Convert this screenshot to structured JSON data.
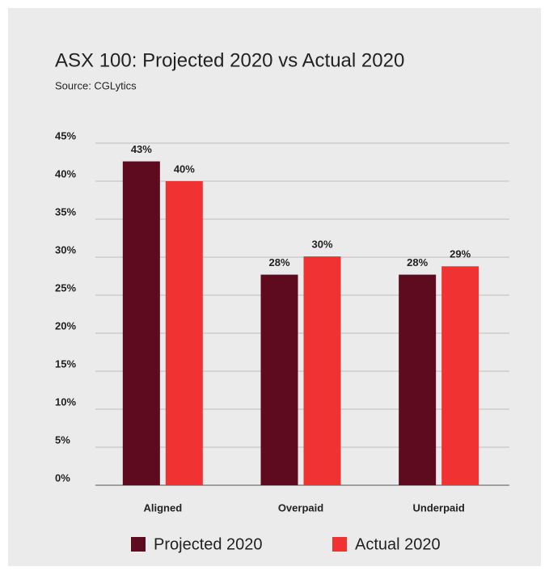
{
  "chart_data": {
    "type": "bar",
    "title": "ASX 100: Projected 2020 vs Actual 2020",
    "subtitle": "Source: CGLytics",
    "categories": [
      "Aligned",
      "Overpaid",
      "Underpaid"
    ],
    "series": [
      {
        "name": "Projected 2020",
        "color": "#5e0a1f",
        "values": [
          42.6,
          27.7,
          27.7
        ],
        "value_labels": [
          "43%",
          "28%",
          "28%"
        ]
      },
      {
        "name": "Actual 2020",
        "color": "#f03232",
        "values": [
          40,
          30.1,
          28.8
        ],
        "value_labels": [
          "40%",
          "30%",
          "29%"
        ]
      }
    ],
    "ylim": [
      0,
      45
    ],
    "yticks": [
      {
        "value": 0,
        "label": "0%"
      },
      {
        "value": 5,
        "label": "5%"
      },
      {
        "value": 10,
        "label": "10%"
      },
      {
        "value": 15,
        "label": "15%"
      },
      {
        "value": 20,
        "label": "20%"
      },
      {
        "value": 25,
        "label": "25%"
      },
      {
        "value": 30,
        "label": "30%"
      },
      {
        "value": 35,
        "label": "35%"
      },
      {
        "value": 40,
        "label": "40%"
      },
      {
        "value": 45,
        "label": "45%"
      }
    ],
    "grid": true,
    "legend": "bottom"
  }
}
